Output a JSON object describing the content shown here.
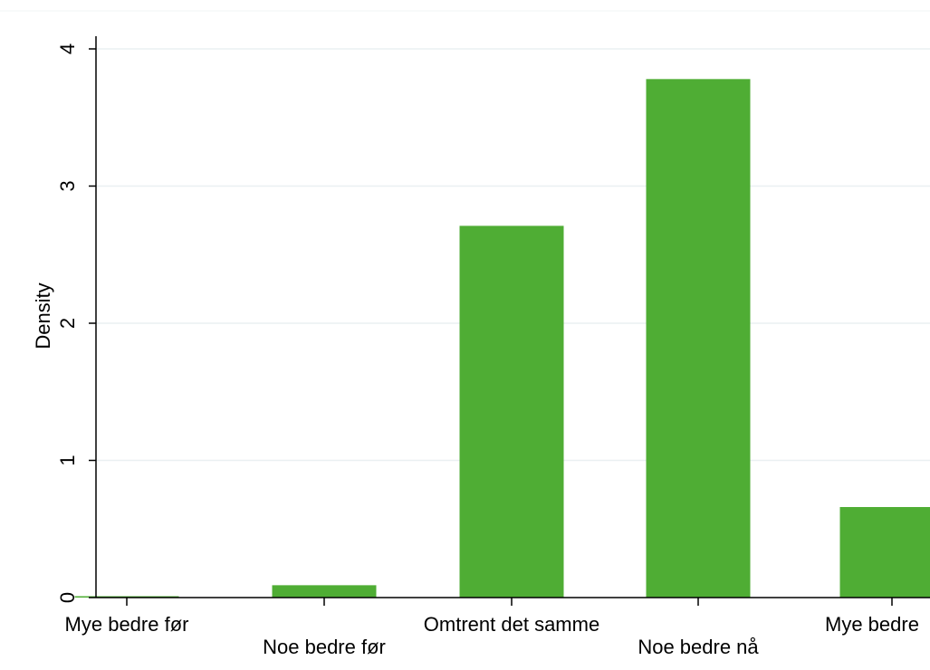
{
  "colors": {
    "bar": "#4fad34",
    "gridline": "#eaf0f2",
    "axis": "#000000",
    "background": "#ffffff"
  },
  "chart_data": {
    "type": "bar",
    "title": "",
    "xlabel": "",
    "ylabel": "Density",
    "categories": [
      "Mye bedre før",
      "Noe bedre før",
      "Omtrent det samme",
      "Noe bedre nå",
      "Mye bedre nå"
    ],
    "visible_category_labels": [
      "Mye bedre før",
      "Noe bedre før",
      "Omtrent det samme",
      "Noe bedre nå",
      "Mye bedre"
    ],
    "values": [
      0.01,
      0.09,
      2.71,
      3.78,
      0.66
    ],
    "ylim": [
      0,
      4
    ],
    "yticks": [
      0,
      1,
      2,
      3,
      4
    ],
    "ytick_labels": [
      "0",
      "1",
      "2",
      "3",
      "4"
    ],
    "grid": true,
    "legend": "none"
  }
}
